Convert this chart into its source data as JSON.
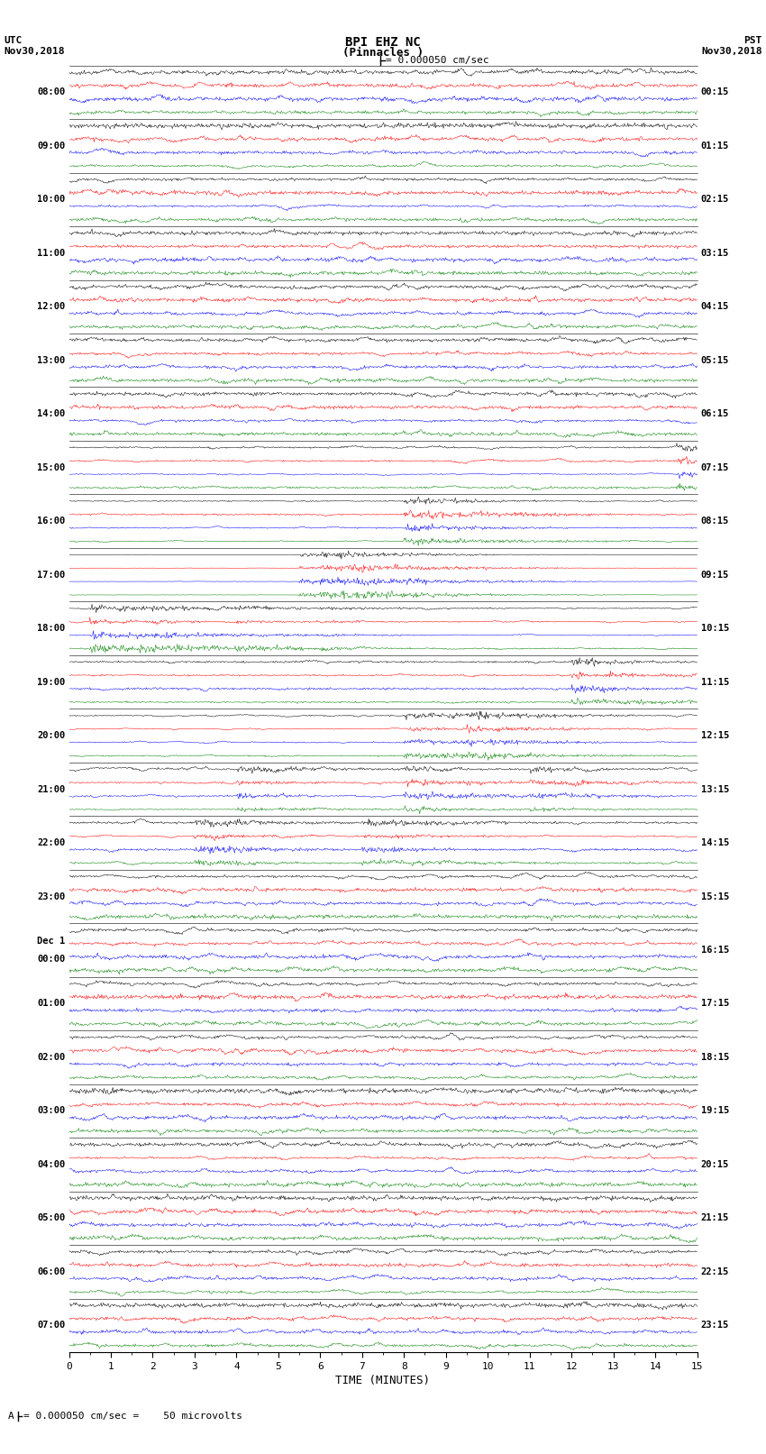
{
  "title_line1": "BPI EHZ NC",
  "title_line2": "(Pinnacles )",
  "scale_label": "= 0.000050 cm/sec",
  "bottom_label": "= 0.000050 cm/sec =    50 microvolts",
  "xlabel": "TIME (MINUTES)",
  "left_times": [
    "08:00",
    "09:00",
    "10:00",
    "11:00",
    "12:00",
    "13:00",
    "14:00",
    "15:00",
    "16:00",
    "17:00",
    "18:00",
    "19:00",
    "20:00",
    "21:00",
    "22:00",
    "23:00",
    "Dec 1\n00:00",
    "01:00",
    "02:00",
    "03:00",
    "04:00",
    "05:00",
    "06:00",
    "07:00"
  ],
  "right_times": [
    "00:15",
    "01:15",
    "02:15",
    "03:15",
    "04:15",
    "05:15",
    "06:15",
    "07:15",
    "08:15",
    "09:15",
    "10:15",
    "11:15",
    "12:15",
    "13:15",
    "14:15",
    "15:15",
    "16:15",
    "17:15",
    "18:15",
    "19:15",
    "20:15",
    "21:15",
    "22:15",
    "23:15"
  ],
  "n_rows": 24,
  "traces_per_row": 4,
  "colors": [
    "black",
    "red",
    "blue",
    "green"
  ],
  "noise_base": 0.03,
  "bg_color": "white",
  "fig_width": 8.5,
  "fig_height": 16.13,
  "dpi": 100,
  "xmin": 0,
  "xmax": 15,
  "xticks": [
    0,
    1,
    2,
    3,
    4,
    5,
    6,
    7,
    8,
    9,
    10,
    11,
    12,
    13,
    14,
    15
  ],
  "event_rows": {
    "7": {
      "times": [
        14.5
      ],
      "amps": [
        6.0
      ]
    },
    "8": {
      "times": [
        8.0
      ],
      "amps": [
        8.0
      ]
    },
    "9": {
      "times": [
        5.5,
        6.0,
        6.5,
        7.0,
        7.5,
        8.0,
        8.5
      ],
      "amps": [
        20,
        30,
        25,
        15,
        10,
        8,
        6
      ]
    },
    "10": {
      "times": [
        0.5,
        2.0,
        4.0,
        6.0
      ],
      "amps": [
        8,
        5,
        4,
        3
      ]
    },
    "11": {
      "times": [
        12.0
      ],
      "amps": [
        5.0
      ]
    },
    "12": {
      "times": [
        8.0,
        9.5
      ],
      "amps": [
        6.0,
        8.0
      ]
    },
    "13": {
      "times": [
        4.0,
        8.0,
        11.0
      ],
      "amps": [
        4,
        5,
        4
      ]
    },
    "14": {
      "times": [
        3.0,
        7.0
      ],
      "amps": [
        5,
        4
      ]
    }
  }
}
